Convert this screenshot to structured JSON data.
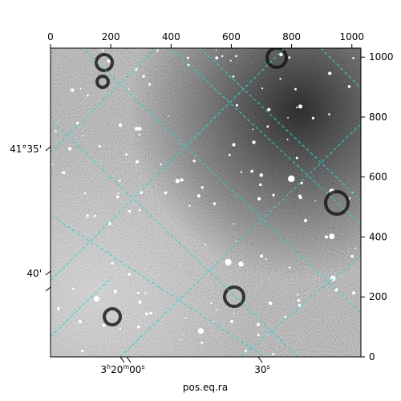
{
  "figure": {
    "xlabel": "pos.eq.ra",
    "top_axis_ticks": [
      "0",
      "200",
      "400",
      "600",
      "800",
      "1000"
    ],
    "right_axis_ticks": [
      "0",
      "200",
      "400",
      "600",
      "800",
      "1000"
    ],
    "bottom_wcs_ticks": [
      {
        "main": "3",
        "sup1": "h",
        "mid": "20",
        "sup2": "m",
        "end": "00",
        "sup3": "s"
      },
      {
        "main": "30",
        "sup1": "s"
      }
    ],
    "left_wcs_ticks": [
      "41°35'",
      "40'"
    ],
    "grid_color": "#2fd1d1",
    "image_colormap": "grayscale"
  }
}
